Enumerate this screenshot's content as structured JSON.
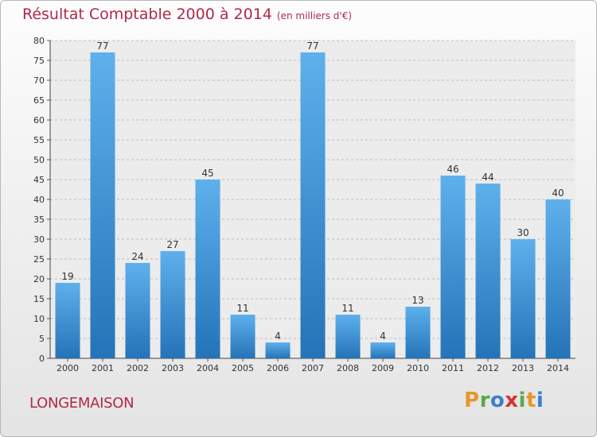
{
  "chart_data": {
    "type": "bar",
    "title": "Résultat Comptable 2000 à 2014",
    "subtitle": "(en milliers d'€)",
    "categories": [
      "2000",
      "2001",
      "2002",
      "2003",
      "2004",
      "2005",
      "2006",
      "2007",
      "2008",
      "2009",
      "2010",
      "2011",
      "2012",
      "2013",
      "2014"
    ],
    "values": [
      19,
      77,
      24,
      27,
      45,
      11,
      4,
      77,
      11,
      4,
      13,
      46,
      44,
      30,
      40
    ],
    "ylim": [
      0,
      80
    ],
    "ytick_step": 5,
    "xlabel": "",
    "ylabel": "",
    "grid": true,
    "bar_color": "#3f97dc"
  },
  "footer": {
    "town": "LONGEMAISON"
  },
  "brand": {
    "letters": [
      {
        "ch": "P",
        "color": "#e8962a"
      },
      {
        "ch": "r",
        "color": "#5aa84a"
      },
      {
        "ch": "o",
        "color": "#3a7fd0"
      },
      {
        "ch": "x",
        "color": "#d8322f"
      },
      {
        "ch": "i",
        "color": "#5aa84a"
      },
      {
        "ch": "t",
        "color": "#e8962a"
      },
      {
        "ch": "i",
        "color": "#3a7fd0"
      }
    ]
  }
}
